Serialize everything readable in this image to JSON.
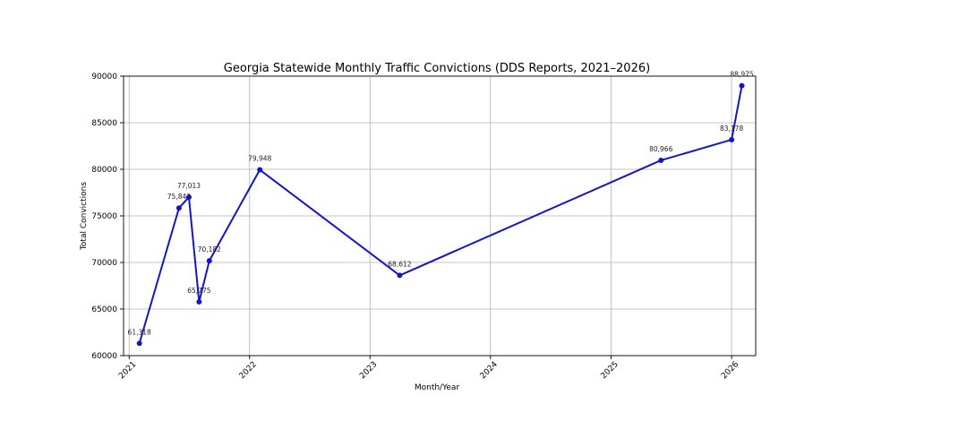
{
  "chart_data": {
    "type": "line",
    "title": "Georgia Statewide Monthly Traffic Convictions (DDS Reports, 2021–2026)",
    "xlabel": "Month/Year",
    "ylabel": "Total Convictions",
    "x_tick_labels": [
      "2021",
      "2022",
      "2023",
      "2024",
      "2025",
      "2026"
    ],
    "y_tick_labels": [
      "60000",
      "65000",
      "70000",
      "75000",
      "80000",
      "85000",
      "90000"
    ],
    "ylim": [
      60000,
      90000
    ],
    "xlim": [
      "2020-12-15",
      "2026-03-15"
    ],
    "grid": true,
    "series_color": "#1515c8",
    "x": [
      "2021-02-01",
      "2021-06-01",
      "2021-07-01",
      "2021-08-01",
      "2021-09-01",
      "2022-02-01",
      "2023-04-01",
      "2025-06-01",
      "2026-01-01",
      "2026-02-01"
    ],
    "values": [
      61318,
      75843,
      77013,
      65775,
      70182,
      79948,
      68612,
      80966,
      83178,
      88975
    ],
    "data_labels": [
      "61,318",
      "75,843",
      "77,013",
      "65,775",
      "70,182",
      "79,948",
      "68,612",
      "80,966",
      "83,178",
      "88,975"
    ]
  }
}
